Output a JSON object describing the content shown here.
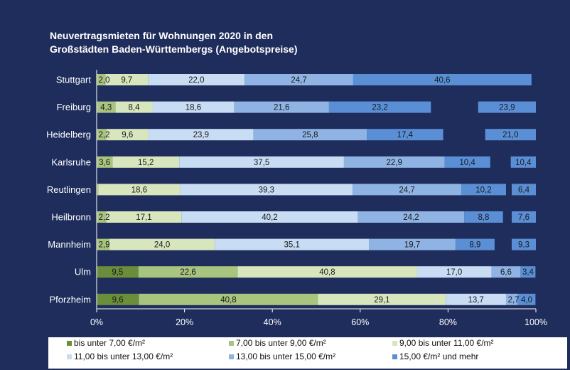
{
  "chart_data": {
    "type": "bar",
    "orientation": "horizontal",
    "stacked": "percent",
    "title": "Neuvertragsmieten für  Wohnungen 2020 in den Großstädten Baden-Württembergs (Angebotspreise)",
    "title_lines": [
      "Neuvertragsmieten für  Wohnungen 2020 in den",
      "Großstädten Baden-Württembergs (Angebotspreise)"
    ],
    "categories": [
      "Stuttgart",
      "Freiburg",
      "Heidelberg",
      "Karlsruhe",
      "Reutlingen",
      "Heilbronn",
      "Mannheim",
      "Ulm",
      "Pforzheim"
    ],
    "series": [
      {
        "name": "bis unter 7,00 €/m²",
        "color": "#6b8e3a",
        "values": [
          0.0,
          0.0,
          0.0,
          0.0,
          0.0,
          0.0,
          0.0,
          9.5,
          9.6
        ],
        "labels": [
          "",
          "",
          "",
          "",
          "",
          "",
          "",
          "9,5",
          "9,6"
        ]
      },
      {
        "name": "7,00 bis unter 9,00 €/m²",
        "color": "#a9c47f",
        "values": [
          2.0,
          4.3,
          2.2,
          3.6,
          0.4,
          2.2,
          2.9,
          22.6,
          40.8
        ],
        "labels": [
          "2,0",
          "4,3",
          "2,2",
          "3,6",
          "",
          "2,2",
          "2,9",
          "22,6",
          "40,8"
        ]
      },
      {
        "name": "9,00 bis unter  11,00 €/m²",
        "color": "#d8e6bd",
        "values": [
          9.7,
          8.4,
          9.6,
          15.2,
          18.6,
          17.1,
          24.0,
          40.8,
          29.1
        ],
        "labels": [
          "9,7",
          "8,4",
          "9,6",
          "15,2",
          "18,6",
          "17,1",
          "24,0",
          "40,8",
          "29,1"
        ]
      },
      {
        "name": "11,00 bis unter  13,00 €/m²",
        "color": "#c8dcf3",
        "values": [
          22.0,
          18.6,
          23.9,
          37.5,
          39.3,
          40.2,
          35.1,
          17.0,
          13.7
        ],
        "labels": [
          "22,0",
          "18,6",
          "23,9",
          "37,5",
          "39,3",
          "40,2",
          "35,1",
          "17,0",
          "13,7"
        ]
      },
      {
        "name": "13,00 bis unter 15,00 €/m²",
        "color": "#8fb4e3",
        "values": [
          24.7,
          21.6,
          25.8,
          22.9,
          24.7,
          24.2,
          19.7,
          6.6,
          2.7
        ],
        "labels": [
          "24,7",
          "21,6",
          "25,8",
          "22,9",
          "24,7",
          "24,2",
          "19,7",
          "6,6",
          "2,7"
        ]
      },
      {
        "name": "15,00 €/m² und mehr",
        "color": "#5a8fd6",
        "values": [
          40.6,
          23.2,
          17.4,
          10.4,
          10.2,
          8.8,
          8.9,
          3.4,
          4.0
        ],
        "labels": [
          "40,6",
          "23,2",
          "17,4",
          "10,4",
          "10,2",
          "8,8",
          "8,9",
          "3,4",
          "4,0"
        ]
      }
    ],
    "overflow_values": [
      {
        "category": "Freiburg",
        "value": 23.9,
        "label": "23,9",
        "color": "#5a8fd6"
      },
      {
        "category": "Heidelberg",
        "value": 21.0,
        "label": "21,0",
        "color": "#5a8fd6"
      },
      {
        "category": "Karlsruhe",
        "value": 10.4,
        "label": "10,4",
        "color": "#5a8fd6"
      },
      {
        "category": "Reutlingen",
        "value": 6.4,
        "label": "6,4",
        "color": "#5a8fd6"
      },
      {
        "category": "Heilbronn",
        "value": 7.6,
        "label": "7,6",
        "color": "#5a8fd6"
      },
      {
        "category": "Mannheim",
        "value": 9.3,
        "label": "9,3",
        "color": "#5a8fd6"
      }
    ],
    "xlim": [
      0,
      100
    ],
    "xticks": [
      0,
      20,
      40,
      60,
      80,
      100
    ],
    "xtick_labels": [
      "0%",
      "20%",
      "40%",
      "60%",
      "80%",
      "100%"
    ],
    "xlabel": "",
    "ylabel": "",
    "grid": false,
    "legend_position": "bottom",
    "background": "#1f2d5c",
    "legend_background": "#ffffff"
  }
}
